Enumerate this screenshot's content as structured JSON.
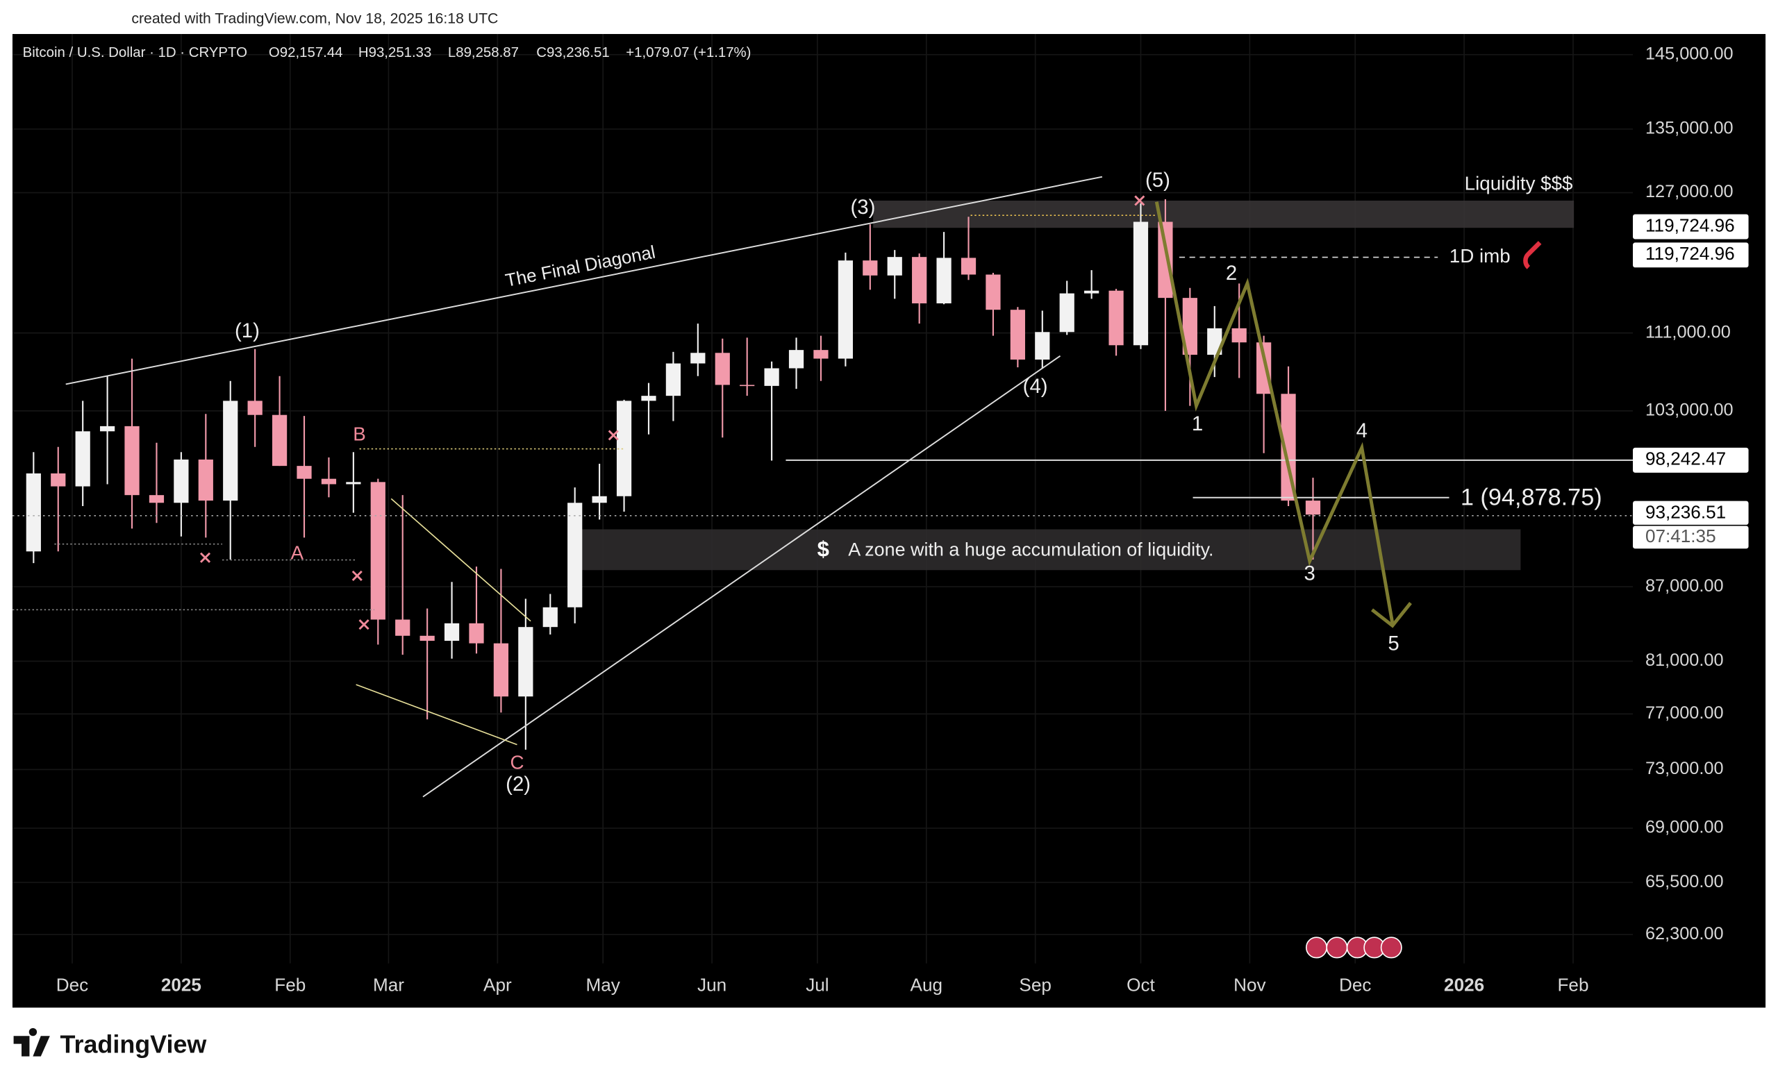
{
  "header": {
    "credit": "created with TradingView.com, Nov 18, 2025 16:18 UTC",
    "symbol": "Bitcoin / U.S. Dollar · 1D · CRYPTO",
    "ohlc": [
      "O92,157.44",
      "H93,251.33",
      "L89,258.87",
      "C93,236.51"
    ],
    "change": "+1,079.07 (+1.17%)"
  },
  "footer": {
    "brand": "TradingView"
  },
  "chart_data": {
    "type": "candlestick",
    "log_scale": true,
    "grid": true,
    "up_color": "#f2f2f2",
    "down_color": "#f29aab",
    "xlim": [
      -48,
      413
    ],
    "xticks": [
      {
        "value": -31,
        "label": "Dec"
      },
      {
        "value": 0,
        "label": "2025"
      },
      {
        "value": 31,
        "label": "Feb"
      },
      {
        "value": 59,
        "label": "Mar"
      },
      {
        "value": 90,
        "label": "Apr"
      },
      {
        "value": 120,
        "label": "May"
      },
      {
        "value": 151,
        "label": "Jun"
      },
      {
        "value": 181,
        "label": "Jul"
      },
      {
        "value": 212,
        "label": "Aug"
      },
      {
        "value": 243,
        "label": "Sep"
      },
      {
        "value": 273,
        "label": "Oct"
      },
      {
        "value": 304,
        "label": "Nov"
      },
      {
        "value": 334,
        "label": "Dec"
      },
      {
        "value": 365,
        "label": "2026"
      },
      {
        "value": 396,
        "label": "Feb"
      }
    ],
    "ylim": [
      60600,
      147900
    ],
    "yticks": [
      {
        "value": 145000,
        "label": "145,000.00"
      },
      {
        "value": 135000,
        "label": "135,000.00"
      },
      {
        "value": 127000,
        "label": "127,000.00"
      },
      {
        "value": 111000,
        "label": "111,000.00"
      },
      {
        "value": 103000,
        "label": "103,000.00"
      },
      {
        "value": 87000,
        "label": "87,000.00"
      },
      {
        "value": 81000,
        "label": "81,000.00"
      },
      {
        "value": 77000,
        "label": "77,000.00"
      },
      {
        "value": 73000,
        "label": "73,000.00"
      },
      {
        "value": 69000,
        "label": "69,000.00"
      },
      {
        "value": 65500,
        "label": "65,500.00"
      },
      {
        "value": 62300,
        "label": "62,300.00"
      }
    ],
    "x": [
      -42,
      -35,
      -28,
      -21,
      -14,
      -7,
      0,
      7,
      14,
      21,
      28,
      35,
      42,
      49,
      56,
      63,
      70,
      77,
      84,
      91,
      98,
      105,
      112,
      119,
      126,
      133,
      140,
      147,
      154,
      161,
      168,
      175,
      182,
      189,
      196,
      203,
      210,
      217,
      224,
      231,
      238,
      245,
      252,
      259,
      266,
      273,
      280,
      287,
      294,
      301,
      308,
      315,
      322
    ],
    "open": [
      90000,
      97000,
      95800,
      101000,
      101500,
      95000,
      94300,
      98300,
      94500,
      104000,
      102600,
      97700,
      96500,
      96000,
      96200,
      84300,
      83000,
      82600,
      84000,
      82400,
      78300,
      83700,
      85300,
      94300,
      94900,
      104000,
      104500,
      107800,
      108900,
      105600,
      105500,
      107300,
      109200,
      108300,
      119000,
      117300,
      119400,
      114200,
      119300,
      117400,
      113500,
      108200,
      111100,
      115300,
      115600,
      109700,
      123500,
      114800,
      108700,
      111500,
      110000,
      104700,
      94500
    ],
    "high": [
      99000,
      99500,
      104000,
      106500,
      108300,
      99900,
      99000,
      102700,
      106000,
      109300,
      106500,
      102500,
      98500,
      99000,
      96500,
      95000,
      85200,
      87400,
      88700,
      88500,
      86000,
      86400,
      95700,
      97900,
      104100,
      105800,
      109000,
      112000,
      110400,
      110500,
      108000,
      110500,
      110700,
      119900,
      123200,
      120200,
      119800,
      122300,
      124100,
      117600,
      113800,
      113400,
      116700,
      117900,
      115800,
      125700,
      126200,
      115900,
      113900,
      116400,
      110700,
      107500,
      96600
    ],
    "low": [
      89000,
      90000,
      94000,
      96000,
      92000,
      92500,
      91300,
      91200,
      89300,
      99500,
      97700,
      91200,
      94800,
      93400,
      82300,
      81500,
      76600,
      81200,
      81600,
      77100,
      74400,
      83100,
      84000,
      92800,
      93500,
      100700,
      102000,
      106500,
      100400,
      104500,
      98200,
      105200,
      106000,
      107500,
      115700,
      114700,
      112000,
      114100,
      116800,
      110700,
      107400,
      107300,
      110800,
      114700,
      108600,
      109300,
      103000,
      103500,
      106400,
      106300,
      98900,
      94000,
      89300
    ],
    "close": [
      97000,
      95800,
      101000,
      101500,
      95000,
      94300,
      98300,
      94500,
      104000,
      102600,
      97700,
      96500,
      96000,
      96200,
      84300,
      83000,
      82600,
      84000,
      82400,
      78300,
      83700,
      85300,
      94300,
      94900,
      104000,
      104500,
      107800,
      108900,
      105600,
      105500,
      107300,
      109200,
      108300,
      119000,
      117300,
      119400,
      114200,
      119300,
      117400,
      113500,
      108200,
      111100,
      115300,
      115600,
      109700,
      123500,
      114800,
      108700,
      111500,
      110000,
      104700,
      94500,
      93236.51
    ],
    "price_labels": [
      "119,724.96",
      "119,724.96",
      "98,242.47",
      "93,236.51",
      "07:41:35"
    ],
    "annotations": [
      "The Final Diagonal",
      "(1)",
      "(2)",
      "(3)",
      "(4)",
      "(5)",
      "A",
      "B",
      "C",
      "1",
      "2",
      "3",
      "4",
      "5",
      "Liquidity $$$",
      "1D imb",
      "1 (94,878.75)",
      "$",
      "A zone with a huge accumulation of liquidity."
    ]
  }
}
